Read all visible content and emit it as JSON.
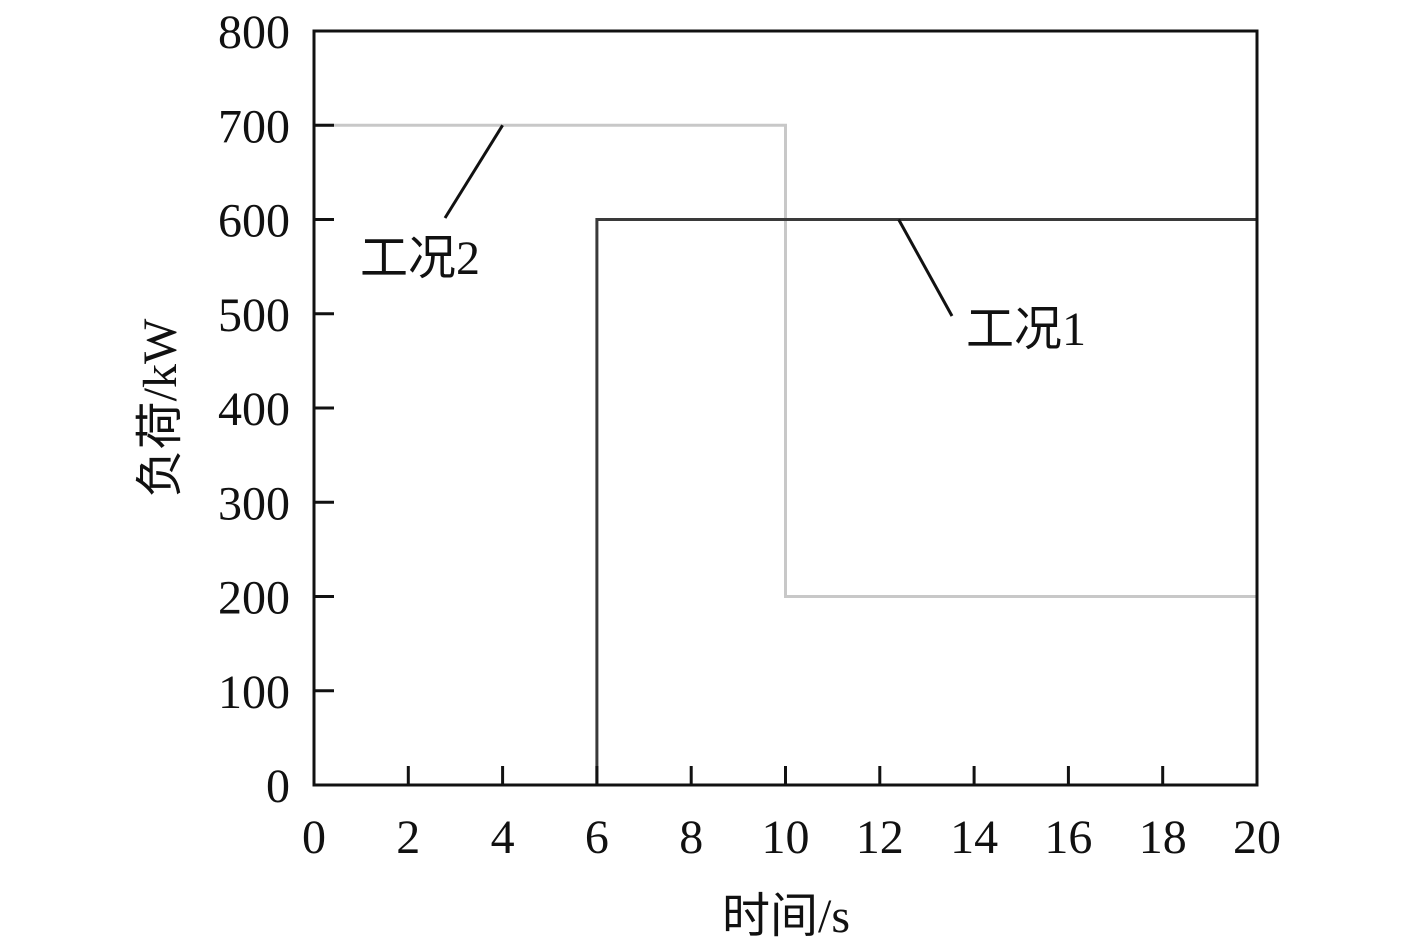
{
  "chart_data": {
    "type": "line",
    "title": "",
    "xlabel": "时间/s",
    "ylabel": "负荷/kW",
    "xlim": [
      0,
      20
    ],
    "ylim": [
      0,
      800
    ],
    "xticks": [
      0,
      2,
      4,
      6,
      8,
      10,
      12,
      14,
      16,
      18,
      20
    ],
    "yticks": [
      0,
      100,
      200,
      300,
      400,
      500,
      600,
      700,
      800
    ],
    "grid": false,
    "legend": "none",
    "series": [
      {
        "name": "工况1",
        "color": "#3a3a3a",
        "step": true,
        "x": [
          0,
          6,
          6,
          20
        ],
        "y": [
          0,
          0,
          600,
          600
        ]
      },
      {
        "name": "工况2",
        "color": "#c8c8c8",
        "step": true,
        "x": [
          0,
          10,
          10,
          20
        ],
        "y": [
          700,
          700,
          200,
          200
        ]
      }
    ],
    "annotations": [
      {
        "text": "工况2",
        "points_to": [
          4,
          700
        ]
      },
      {
        "text": "工况1",
        "points_to": [
          12.4,
          600
        ]
      }
    ]
  }
}
